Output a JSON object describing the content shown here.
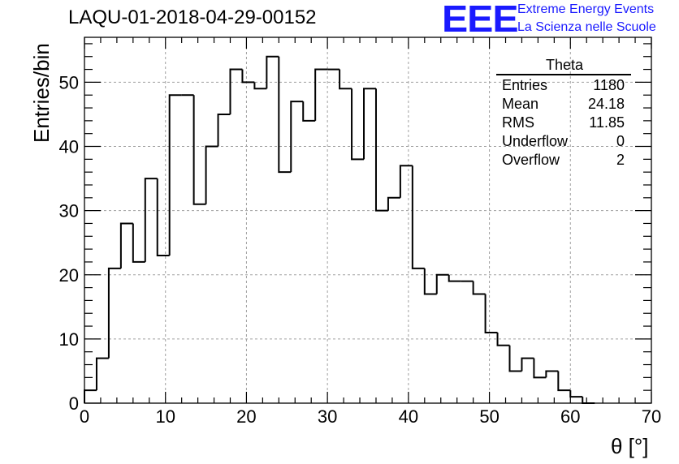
{
  "header": {
    "run_id": "LAQU-01-2018-04-29-00152",
    "logo_text": "EEE",
    "tagline_1": "Extreme Energy Events",
    "tagline_2": "La Scienza nelle Scuole"
  },
  "stats": {
    "title": "Theta",
    "rows": [
      {
        "label": "Entries",
        "value": "1180"
      },
      {
        "label": "Mean",
        "value": "24.18"
      },
      {
        "label": "RMS",
        "value": "11.85"
      },
      {
        "label": "Underflow",
        "value": "0"
      },
      {
        "label": "Overflow",
        "value": "2"
      }
    ]
  },
  "colors": {
    "hist_line": "#000000",
    "grid": "#a0a0a0",
    "logo": "#1a1aff"
  },
  "chart_data": {
    "type": "histogram",
    "title": "LAQU-01-2018-04-29-00152",
    "xlabel": "θ [°]",
    "ylabel": "Entries/bin",
    "xlim": [
      0,
      70
    ],
    "ylim": [
      0,
      57
    ],
    "bin_width": 1.5,
    "x_ticks": [
      0,
      10,
      20,
      30,
      40,
      50,
      60,
      70
    ],
    "y_ticks": [
      0,
      10,
      20,
      30,
      40,
      50
    ],
    "grid": true,
    "values": [
      2,
      7,
      21,
      28,
      22,
      35,
      23,
      48,
      48,
      31,
      40,
      45,
      52,
      50,
      49,
      54,
      36,
      47,
      44,
      52,
      52,
      49,
      38,
      49,
      30,
      32,
      37,
      21,
      17,
      20,
      19,
      19,
      17,
      11,
      9,
      5,
      7,
      4,
      5,
      2,
      1,
      0
    ]
  }
}
